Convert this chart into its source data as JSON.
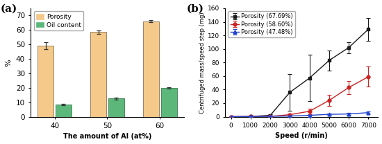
{
  "panel_a": {
    "categories": [
      "40",
      "50",
      "60"
    ],
    "porosity": [
      49.0,
      58.5,
      66.0
    ],
    "porosity_err": [
      2.5,
      1.0,
      0.7
    ],
    "oil_content": [
      8.5,
      12.5,
      20.0
    ],
    "oil_content_err": [
      0.4,
      0.5,
      0.5
    ],
    "bar_color_porosity": "#F5C98A",
    "bar_color_oil": "#5CB87A",
    "bar_edge_porosity": "#8B7355",
    "bar_edge_oil": "#3A7A50",
    "ylabel": "%",
    "xlabel": "The amount of Al (at%)",
    "ylim": [
      0,
      75
    ],
    "yticks": [
      0,
      10,
      20,
      30,
      40,
      50,
      60,
      70
    ],
    "label_a": "(a)"
  },
  "panel_b": {
    "speeds": [
      0,
      1000,
      2000,
      3000,
      4000,
      5000,
      6000,
      7000
    ],
    "black_vals": [
      0.0,
      0.3,
      2.0,
      36,
      57,
      83,
      102,
      129
    ],
    "black_errs": [
      0.3,
      0.3,
      1.5,
      27,
      34,
      15,
      8,
      17
    ],
    "red_vals": [
      0.0,
      0.3,
      0.5,
      3,
      8,
      24,
      43,
      59
    ],
    "red_errs": [
      0.2,
      0.2,
      0.5,
      1.5,
      4,
      8,
      10,
      15
    ],
    "blue_vals": [
      0.0,
      0.3,
      0.5,
      1,
      2,
      3.5,
      4,
      6
    ],
    "blue_errs": [
      0.1,
      0.2,
      0.3,
      0.4,
      0.8,
      0.8,
      1.2,
      1.5
    ],
    "black_color": "#1a1a1a",
    "red_color": "#CC2222",
    "blue_color": "#2244CC",
    "label_b": "(b)",
    "xlabel": "Speed (r/min)",
    "ylabel": "Centrifuged mass/speed step (mg)",
    "ylim": [
      0,
      160
    ],
    "yticks": [
      0,
      20,
      40,
      60,
      80,
      100,
      120,
      140,
      160
    ],
    "legend_black": "Porosity (67.69%)",
    "legend_red": "Porosity (58.60%)",
    "legend_blue": "Porosity (47.48%)"
  }
}
